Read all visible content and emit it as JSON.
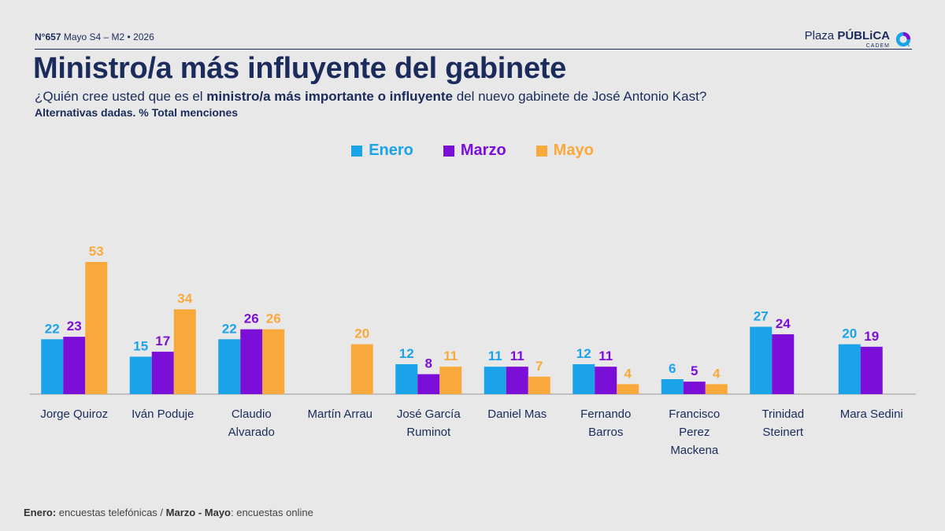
{
  "header": {
    "issue_number": "N°657",
    "issue_rest": "Mayo S4 – M2 • 2026",
    "brand_plaza": "Plaza",
    "brand_publica": "PÚBLiCA",
    "brand_sub": "CADEM",
    "logo_icon": "plaza-publica-logo-icon"
  },
  "title": "Ministro/a más influyente del gabinete",
  "question": {
    "pre": "¿Quién cree usted que es el ",
    "bold": "ministro/a más importante o influyente",
    "post": " del nuevo gabinete de José Antonio Kast?"
  },
  "subtitle": "Alternativas dadas. % Total menciones",
  "footer": {
    "enero_label": "Enero:",
    "enero_text": " encuestas telefónicas / ",
    "marzo_mayo_label": "Marzo - Mayo",
    "marzo_mayo_text": ": encuestas online"
  },
  "colors": {
    "Enero": "#1aa3e8",
    "Marzo": "#7b0fd8",
    "Mayo": "#f9a93c",
    "text": "#1a2b5c"
  },
  "chart_data": {
    "type": "bar",
    "categories": [
      [
        "Jorge Quiroz"
      ],
      [
        "Iván Poduje"
      ],
      [
        "Claudio",
        "Alvarado"
      ],
      [
        "Martín Arrau"
      ],
      [
        "José García",
        "Ruminot"
      ],
      [
        "Daniel Mas"
      ],
      [
        "Fernando",
        "Barros"
      ],
      [
        "Francisco",
        "Perez",
        "Mackena"
      ],
      [
        "Trinidad",
        "Steinert"
      ],
      [
        "Mara Sedini"
      ]
    ],
    "series": [
      {
        "name": "Enero",
        "values": [
          22,
          15,
          22,
          null,
          12,
          11,
          12,
          6,
          27,
          20
        ]
      },
      {
        "name": "Marzo",
        "values": [
          23,
          17,
          26,
          null,
          8,
          11,
          11,
          5,
          24,
          19
        ]
      },
      {
        "name": "Mayo",
        "values": [
          53,
          34,
          26,
          20,
          11,
          7,
          4,
          4,
          null,
          null
        ]
      }
    ],
    "ylim": [
      0,
      55
    ],
    "legend_position": "top-center"
  }
}
